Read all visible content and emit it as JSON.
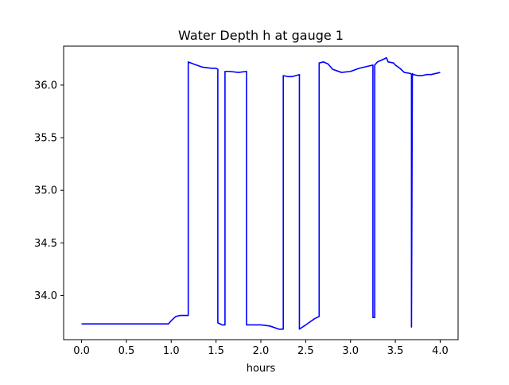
{
  "chart_data": {
    "type": "line",
    "title": "Water Depth h at gauge 1",
    "xlabel": "hours",
    "ylabel": "",
    "xlim": [
      -0.2,
      4.2
    ],
    "ylim": [
      33.58,
      36.37
    ],
    "xticks": [
      0.0,
      0.5,
      1.0,
      1.5,
      2.0,
      2.5,
      3.0,
      3.5,
      4.0
    ],
    "xtick_labels": [
      "0.0",
      "0.5",
      "1.0",
      "1.5",
      "2.0",
      "2.5",
      "3.0",
      "3.5",
      "4.0"
    ],
    "yticks": [
      34.0,
      34.5,
      35.0,
      35.5,
      36.0
    ],
    "ytick_labels": [
      "34.0",
      "34.5",
      "35.0",
      "35.5",
      "36.0"
    ],
    "grid": false,
    "series": [
      {
        "color": "#0000ff",
        "x": [
          0.0,
          0.3,
          0.6,
          0.97,
          1.0,
          1.05,
          1.1,
          1.15,
          1.19,
          1.19,
          1.25,
          1.35,
          1.45,
          1.5,
          1.52,
          1.52,
          1.57,
          1.6,
          1.6,
          1.65,
          1.75,
          1.84,
          1.84,
          1.95,
          2.0,
          2.1,
          2.2,
          2.25,
          2.25,
          2.3,
          2.35,
          2.43,
          2.43,
          2.5,
          2.6,
          2.65,
          2.65,
          2.7,
          2.75,
          2.8,
          2.9,
          3.0,
          3.1,
          3.2,
          3.25,
          3.25,
          3.27,
          3.27,
          3.3,
          3.38,
          3.4,
          3.41,
          3.42,
          3.48,
          3.5,
          3.55,
          3.6,
          3.67,
          3.68,
          3.68,
          3.69,
          3.7,
          3.75,
          3.8,
          3.85,
          3.9,
          4.0
        ],
        "y": [
          33.73,
          33.73,
          33.73,
          33.73,
          33.76,
          33.8,
          33.81,
          33.81,
          33.81,
          36.22,
          36.2,
          36.17,
          36.16,
          36.16,
          36.15,
          33.74,
          33.72,
          33.72,
          36.13,
          36.13,
          36.12,
          36.13,
          33.72,
          33.72,
          33.72,
          33.71,
          33.68,
          33.68,
          36.09,
          36.08,
          36.08,
          36.1,
          33.68,
          33.72,
          33.78,
          33.8,
          36.21,
          36.22,
          36.2,
          36.15,
          36.12,
          36.13,
          36.16,
          36.18,
          36.19,
          33.79,
          33.79,
          36.19,
          36.22,
          36.25,
          36.26,
          36.24,
          36.22,
          36.21,
          36.19,
          36.16,
          36.12,
          36.11,
          36.1,
          33.7,
          36.11,
          36.1,
          36.09,
          36.09,
          36.1,
          36.1,
          36.12
        ]
      }
    ]
  }
}
